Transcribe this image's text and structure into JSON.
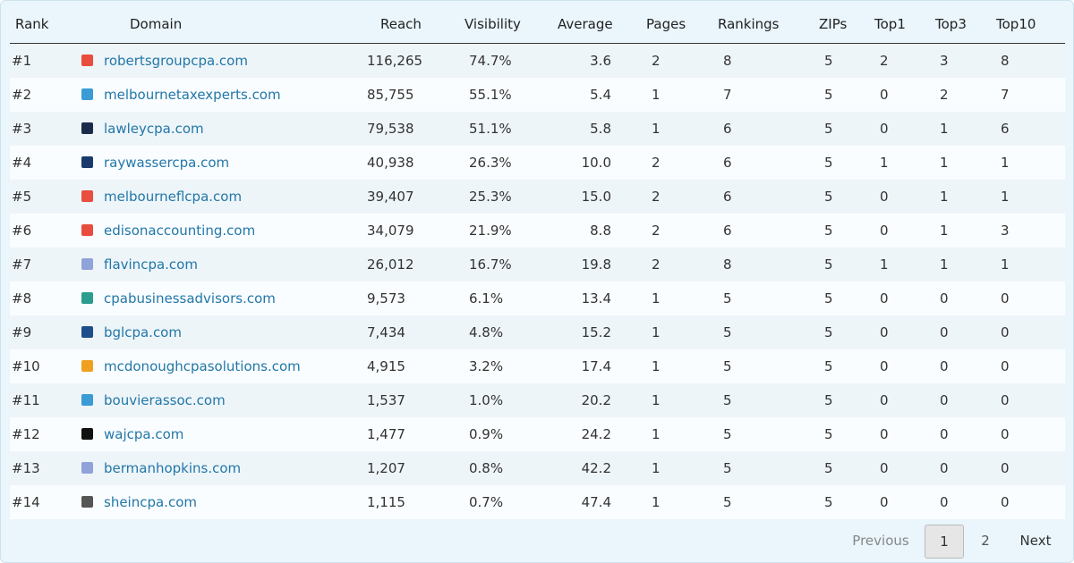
{
  "table": {
    "columns": [
      "Rank",
      "Domain",
      "Reach",
      "Visibility",
      "Average",
      "Pages",
      "Rankings",
      "ZIPs",
      "Top1",
      "Top3",
      "Top10"
    ],
    "rows": [
      [
        "#1",
        "robertsgroupcpa.com",
        "116,265",
        "74.7%",
        "3.6",
        "2",
        "8",
        "5",
        "2",
        "3",
        "8"
      ],
      [
        "#2",
        "melbournetaxexperts.com",
        "85,755",
        "55.1%",
        "5.4",
        "1",
        "7",
        "5",
        "0",
        "2",
        "7"
      ],
      [
        "#3",
        "lawleycpa.com",
        "79,538",
        "51.1%",
        "5.8",
        "1",
        "6",
        "5",
        "0",
        "1",
        "6"
      ],
      [
        "#4",
        "raywassercpa.com",
        "40,938",
        "26.3%",
        "10.0",
        "2",
        "6",
        "5",
        "1",
        "1",
        "1"
      ],
      [
        "#5",
        "melbourneflcpa.com",
        "39,407",
        "25.3%",
        "15.0",
        "2",
        "6",
        "5",
        "0",
        "1",
        "1"
      ],
      [
        "#6",
        "edisonaccounting.com",
        "34,079",
        "21.9%",
        "8.8",
        "2",
        "6",
        "5",
        "0",
        "1",
        "3"
      ],
      [
        "#7",
        "flavincpa.com",
        "26,012",
        "16.7%",
        "19.8",
        "2",
        "8",
        "5",
        "1",
        "1",
        "1"
      ],
      [
        "#8",
        "cpabusinessadvisors.com",
        "9,573",
        "6.1%",
        "13.4",
        "1",
        "5",
        "5",
        "0",
        "0",
        "0"
      ],
      [
        "#9",
        "bglcpa.com",
        "7,434",
        "4.8%",
        "15.2",
        "1",
        "5",
        "5",
        "0",
        "0",
        "0"
      ],
      [
        "#10",
        "mcdonoughcpasolutions.com",
        "4,915",
        "3.2%",
        "17.4",
        "1",
        "5",
        "5",
        "0",
        "0",
        "0"
      ],
      [
        "#11",
        "bouvierassoc.com",
        "1,537",
        "1.0%",
        "20.2",
        "1",
        "5",
        "5",
        "0",
        "0",
        "0"
      ],
      [
        "#12",
        "wajcpa.com",
        "1,477",
        "0.9%",
        "24.2",
        "1",
        "5",
        "5",
        "0",
        "0",
        "0"
      ],
      [
        "#13",
        "bermanhopkins.com",
        "1,207",
        "0.8%",
        "42.2",
        "1",
        "5",
        "5",
        "0",
        "0",
        "0"
      ],
      [
        "#14",
        "sheincpa.com",
        "1,115",
        "0.7%",
        "47.4",
        "1",
        "5",
        "5",
        "0",
        "0",
        "0"
      ]
    ]
  },
  "pagination": {
    "previous": "Previous",
    "pages": [
      "1",
      "2"
    ],
    "next": "Next"
  }
}
